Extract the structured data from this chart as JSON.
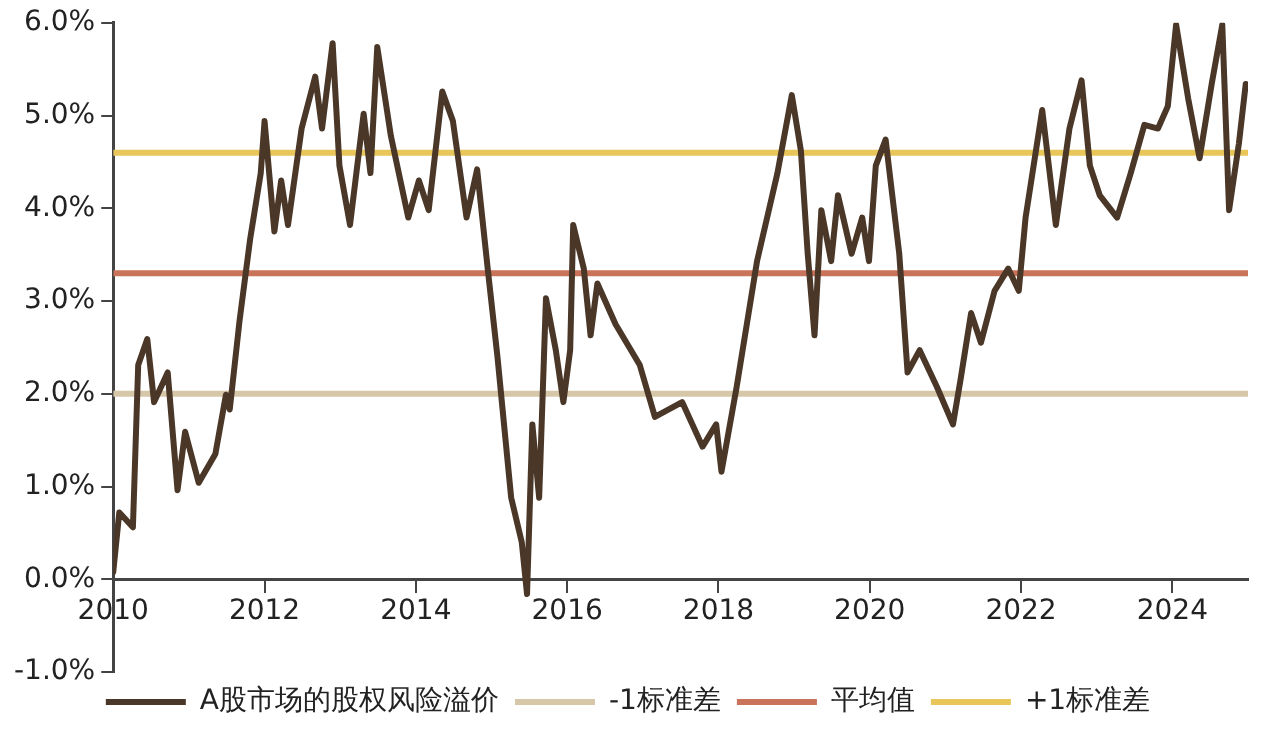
{
  "chart_data": {
    "type": "line",
    "x": [
      2010,
      2010.08,
      2010.26,
      2010.33,
      2010.45,
      2010.54,
      2010.72,
      2010.85,
      2010.95,
      2011.13,
      2011.35,
      2011.49,
      2011.54,
      2011.67,
      2011.81,
      2011.95,
      2012,
      2012.13,
      2012.22,
      2012.31,
      2012.49,
      2012.67,
      2012.76,
      2012.9,
      2012.99,
      2013.13,
      2013.31,
      2013.4,
      2013.49,
      2013.67,
      2013.9,
      2014.04,
      2014.17,
      2014.35,
      2014.49,
      2014.67,
      2014.81,
      2014.95,
      2015.08,
      2015.26,
      2015.4,
      2015.47,
      2015.54,
      2015.63,
      2015.72,
      2015.85,
      2015.95,
      2016.04,
      2016.08,
      2016.22,
      2016.31,
      2016.4,
      2016.64,
      2016.96,
      2017.16,
      2017.52,
      2017.79,
      2017.97,
      2018.04,
      2018.24,
      2018.51,
      2018.78,
      2018.97,
      2019.09,
      2019.18,
      2019.27,
      2019.36,
      2019.49,
      2019.58,
      2019.76,
      2019.9,
      2019.99,
      2020.08,
      2020.21,
      2020.39,
      2020.5,
      2020.66,
      2020.89,
      2021.1,
      2021.2,
      2021.34,
      2021.47,
      2021.65,
      2021.83,
      2021.97,
      2022.06,
      2022.28,
      2022.46,
      2022.64,
      2022.8,
      2022.91,
      2023.04,
      2023.27,
      2023.45,
      2023.63,
      2023.81,
      2023.94,
      2024.05,
      2024.21,
      2024.36,
      2024.52,
      2024.66,
      2024.75,
      2024.88,
      2024.97
    ],
    "series": [
      {
        "name": "A股市场的股权风险溢价",
        "color": "#4a3728",
        "values": [
          0.08,
          0.72,
          0.56,
          2.31,
          2.59,
          1.91,
          2.23,
          0.96,
          1.59,
          1.04,
          1.35,
          1.99,
          1.83,
          2.79,
          3.67,
          4.38,
          4.94,
          3.75,
          4.3,
          3.82,
          4.86,
          5.42,
          4.86,
          5.78,
          4.46,
          3.82,
          5.02,
          4.38,
          5.74,
          4.78,
          3.9,
          4.3,
          3.98,
          5.26,
          4.94,
          3.9,
          4.42,
          3.35,
          2.39,
          0.88,
          0.4,
          -0.16,
          1.67,
          0.88,
          3.03,
          2.47,
          1.91,
          2.47,
          3.82,
          3.35,
          2.63,
          3.19,
          2.75,
          2.31,
          1.75,
          1.91,
          1.43,
          1.67,
          1.16,
          2.07,
          3.43,
          4.38,
          5.22,
          4.62,
          3.51,
          2.63,
          3.98,
          3.43,
          4.14,
          3.51,
          3.9,
          3.43,
          4.46,
          4.74,
          3.51,
          2.23,
          2.47,
          2.07,
          1.67,
          2.15,
          2.87,
          2.55,
          3.11,
          3.35,
          3.11,
          3.9,
          5.06,
          3.82,
          4.86,
          5.38,
          4.46,
          4.14,
          3.9,
          4.38,
          4.9,
          4.86,
          5.1,
          5.98,
          5.18,
          4.54,
          5.34,
          5.98,
          3.98,
          4.7,
          5.34
        ]
      }
    ],
    "ref_lines": [
      {
        "axis": "y",
        "value": 2.0,
        "label": "-1标准差",
        "color": "#d6c7a8"
      },
      {
        "axis": "y",
        "value": 3.3,
        "label": "平均值",
        "color": "#c8735a"
      },
      {
        "axis": "y",
        "value": 4.6,
        "label": "+1标准差",
        "color": "#e8c65a"
      }
    ],
    "xlim": [
      2010,
      2025
    ],
    "xticks": [
      2010,
      2012,
      2014,
      2016,
      2018,
      2020,
      2022,
      2024
    ],
    "ylim": [
      -1,
      6
    ],
    "yticks": [
      {
        "value": -1,
        "label": "-1.0%"
      },
      {
        "value": 0,
        "label": "0.0%"
      },
      {
        "value": 1,
        "label": "1.0%"
      },
      {
        "value": 2,
        "label": "2.0%"
      },
      {
        "value": 3,
        "label": "3.0%"
      },
      {
        "value": 4,
        "label": "4.0%"
      },
      {
        "value": 5,
        "label": "5.0%"
      },
      {
        "value": 6,
        "label": "6.0%"
      }
    ],
    "legend": "bottom",
    "marker": "none"
  }
}
